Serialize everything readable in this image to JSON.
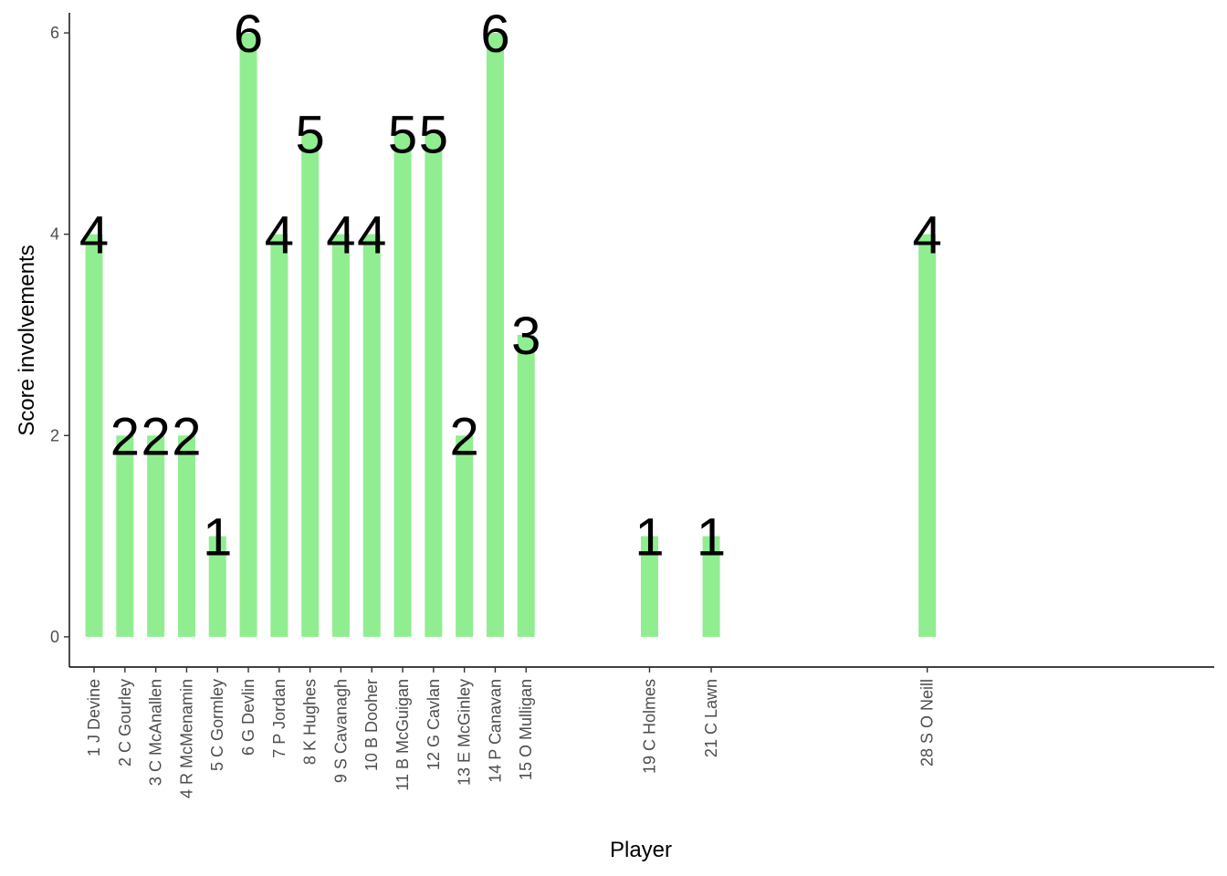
{
  "chart_data": {
    "type": "bar",
    "title": "",
    "xlabel": "Player",
    "ylabel": "Score involvements",
    "ylim": [
      -0.3,
      6.2
    ],
    "yticks": [
      0,
      2,
      4,
      6
    ],
    "grid": false,
    "legend": "none",
    "bar_color": "#90EE90",
    "x_positions": [
      1,
      2,
      3,
      4,
      5,
      6,
      7,
      8,
      9,
      10,
      11,
      12,
      13,
      14,
      15,
      19,
      21,
      28
    ],
    "xlim": [
      0.2,
      37.3
    ],
    "categories": [
      "1 J Devine",
      "2 C Gourley",
      "3 C McAnallen",
      "4 R McMenamin",
      "5 C Gormley",
      "6 G Devlin",
      "7 P Jordan",
      "8 K Hughes",
      "9 S Cavanagh",
      "10 B Dooher",
      "11 B McGuigan",
      "12 G Cavlan",
      "13 E McGinley",
      "14 P Canavan",
      "15 O Mulligan",
      "19 C Holmes",
      "21 C Lawn",
      "28 S O Neill"
    ],
    "values": [
      4,
      2,
      2,
      2,
      1,
      6,
      4,
      5,
      4,
      4,
      5,
      5,
      2,
      6,
      3,
      1,
      1,
      4
    ]
  }
}
